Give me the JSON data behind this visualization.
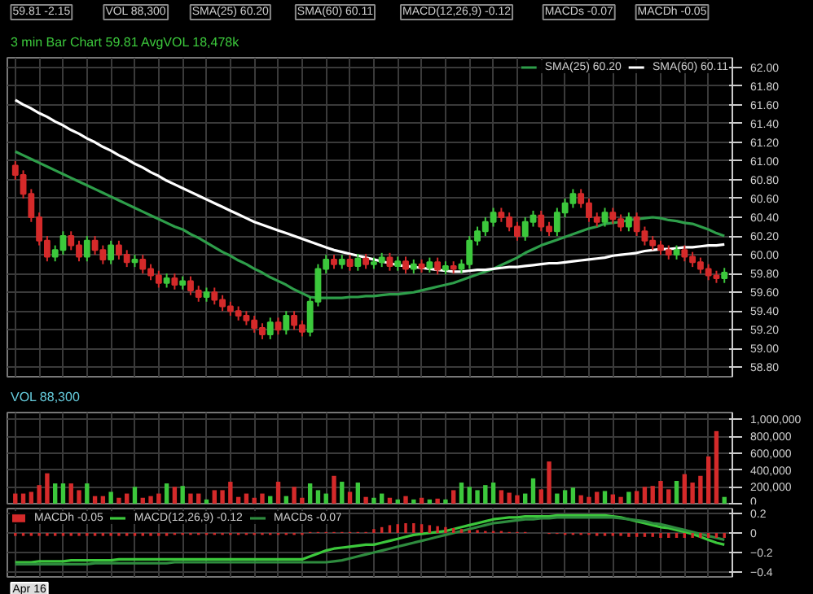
{
  "chart_data": [
    {
      "type": "candlestick",
      "title": "3 min Bar Chart 59.81 AvgVOL 18,478k",
      "annotations": [
        "59.81 -2.15",
        "VOL 88,300",
        "SMA(25) 60.20",
        "SMA(60) 60.11",
        "MACD(12,26,9) -0.12",
        "MACDs -0.07",
        "MACDh -0.05"
      ],
      "categories": [
        null,
        null,
        null,
        null,
        null,
        null,
        null,
        null,
        null,
        null,
        null,
        null,
        null,
        null,
        null,
        null,
        null,
        null,
        null,
        null,
        null,
        null,
        null,
        null,
        null,
        null,
        null,
        null,
        null,
        null,
        null,
        null,
        null,
        null,
        null,
        null,
        null,
        null,
        null,
        null,
        null,
        null,
        null,
        null,
        null,
        null,
        null,
        null,
        null,
        null,
        null,
        null,
        null,
        null,
        null,
        null,
        null,
        null,
        null,
        null,
        null,
        null,
        null,
        null,
        null,
        null,
        null,
        null,
        null,
        null,
        null,
        null,
        null,
        null,
        null,
        null,
        null,
        null,
        null,
        null,
        null,
        null,
        null,
        null,
        null,
        null,
        null,
        null,
        null,
        null
      ],
      "ohlc": [
        [
          60.95,
          61.0,
          60.8,
          60.85
        ],
        [
          60.85,
          60.9,
          60.6,
          60.65
        ],
        [
          60.65,
          60.7,
          60.35,
          60.4
        ],
        [
          60.4,
          60.45,
          60.1,
          60.15
        ],
        [
          60.15,
          60.2,
          59.93,
          59.98
        ],
        [
          59.98,
          60.1,
          59.93,
          60.05
        ],
        [
          60.05,
          60.25,
          60.0,
          60.2
        ],
        [
          60.2,
          60.25,
          60.05,
          60.1
        ],
        [
          60.1,
          60.15,
          59.93,
          59.98
        ],
        [
          59.98,
          60.2,
          59.93,
          60.15
        ],
        [
          60.15,
          60.2,
          60.0,
          60.05
        ],
        [
          60.05,
          60.1,
          59.9,
          59.95
        ],
        [
          59.95,
          60.15,
          59.9,
          60.1
        ],
        [
          60.1,
          60.15,
          59.95,
          60.0
        ],
        [
          60.0,
          60.05,
          59.87,
          59.92
        ],
        [
          59.92,
          60.0,
          59.87,
          59.95
        ],
        [
          59.95,
          60.0,
          59.8,
          59.85
        ],
        [
          59.85,
          59.9,
          59.73,
          59.78
        ],
        [
          59.78,
          59.83,
          59.65,
          59.7
        ],
        [
          59.7,
          59.8,
          59.65,
          59.75
        ],
        [
          59.75,
          59.8,
          59.63,
          59.68
        ],
        [
          59.68,
          59.77,
          59.63,
          59.72
        ],
        [
          59.72,
          59.77,
          59.57,
          59.62
        ],
        [
          59.62,
          59.67,
          59.5,
          59.55
        ],
        [
          59.55,
          59.65,
          59.5,
          59.6
        ],
        [
          59.6,
          59.65,
          59.47,
          59.52
        ],
        [
          59.52,
          59.57,
          59.4,
          59.45
        ],
        [
          59.45,
          59.5,
          59.35,
          59.4
        ],
        [
          59.4,
          59.45,
          59.3,
          59.35
        ],
        [
          59.35,
          59.4,
          59.25,
          59.3
        ],
        [
          59.3,
          59.35,
          59.17,
          59.22
        ],
        [
          59.22,
          59.27,
          59.1,
          59.15
        ],
        [
          59.15,
          59.33,
          59.1,
          59.28
        ],
        [
          59.28,
          59.33,
          59.15,
          59.2
        ],
        [
          59.2,
          59.4,
          59.15,
          59.35
        ],
        [
          59.35,
          59.4,
          59.2,
          59.25
        ],
        [
          59.25,
          59.3,
          59.13,
          59.18
        ],
        [
          59.18,
          59.55,
          59.13,
          59.5
        ],
        [
          59.5,
          59.9,
          59.45,
          59.85
        ],
        [
          59.85,
          60.0,
          59.8,
          59.95
        ],
        [
          59.95,
          60.0,
          59.85,
          59.9
        ],
        [
          59.9,
          60.0,
          59.85,
          59.95
        ],
        [
          59.95,
          60.0,
          59.83,
          59.88
        ],
        [
          59.88,
          60.01,
          59.83,
          59.96
        ],
        [
          59.96,
          60.01,
          59.85,
          59.9
        ],
        [
          59.9,
          59.97,
          59.85,
          59.92
        ],
        [
          59.92,
          60.02,
          59.87,
          59.97
        ],
        [
          59.97,
          60.02,
          59.83,
          59.88
        ],
        [
          59.88,
          59.98,
          59.83,
          59.93
        ],
        [
          59.93,
          59.98,
          59.8,
          59.85
        ],
        [
          59.85,
          59.95,
          59.8,
          59.9
        ],
        [
          59.9,
          59.95,
          59.81,
          59.86
        ],
        [
          59.86,
          59.97,
          59.81,
          59.92
        ],
        [
          59.92,
          59.97,
          59.79,
          59.84
        ],
        [
          59.84,
          59.93,
          59.79,
          59.88
        ],
        [
          59.88,
          59.93,
          59.8,
          59.85
        ],
        [
          59.85,
          59.95,
          59.8,
          59.9
        ],
        [
          59.9,
          60.2,
          59.85,
          60.15
        ],
        [
          60.15,
          60.3,
          60.1,
          60.25
        ],
        [
          60.25,
          60.4,
          60.2,
          60.35
        ],
        [
          60.35,
          60.5,
          60.3,
          60.45
        ],
        [
          60.45,
          60.5,
          60.35,
          60.4
        ],
        [
          60.4,
          60.45,
          60.25,
          60.3
        ],
        [
          60.3,
          60.35,
          60.15,
          60.2
        ],
        [
          60.2,
          60.4,
          60.15,
          60.35
        ],
        [
          60.35,
          60.47,
          60.3,
          60.42
        ],
        [
          60.42,
          60.47,
          60.25,
          60.3
        ],
        [
          60.3,
          60.35,
          60.2,
          60.25
        ],
        [
          60.25,
          60.5,
          60.2,
          60.45
        ],
        [
          60.45,
          60.6,
          60.4,
          60.55
        ],
        [
          60.55,
          60.7,
          60.5,
          60.65
        ],
        [
          60.65,
          60.7,
          60.5,
          60.55
        ],
        [
          60.55,
          60.6,
          60.35,
          60.4
        ],
        [
          60.4,
          60.45,
          60.3,
          60.35
        ],
        [
          60.35,
          60.5,
          60.3,
          60.45
        ],
        [
          60.45,
          60.5,
          60.33,
          60.38
        ],
        [
          60.38,
          60.43,
          60.25,
          60.3
        ],
        [
          60.3,
          60.45,
          60.25,
          60.4
        ],
        [
          60.4,
          60.45,
          60.2,
          60.25
        ],
        [
          60.25,
          60.3,
          60.1,
          60.15
        ],
        [
          60.15,
          60.2,
          60.05,
          60.1
        ],
        [
          60.1,
          60.15,
          60.0,
          60.05
        ],
        [
          60.05,
          60.1,
          59.95,
          60.0
        ],
        [
          60.0,
          60.1,
          59.95,
          60.05
        ],
        [
          60.05,
          60.1,
          59.93,
          59.98
        ],
        [
          59.98,
          60.03,
          59.87,
          59.92
        ],
        [
          59.92,
          59.97,
          59.8,
          59.85
        ],
        [
          59.85,
          59.9,
          59.73,
          59.78
        ],
        [
          59.78,
          59.83,
          59.7,
          59.75
        ],
        [
          59.75,
          59.86,
          59.7,
          59.81
        ]
      ],
      "colors": [
        "#d42a2a",
        "#d42a2a",
        "#d42a2a",
        "#d42a2a",
        "#d42a2a",
        "#3cc83c",
        "#3cc83c",
        "#d42a2a",
        "#d42a2a",
        "#3cc83c",
        "#d42a2a",
        "#d42a2a",
        "#3cc83c",
        "#d42a2a",
        "#d42a2a",
        "#3cc83c",
        "#d42a2a",
        "#d42a2a",
        "#d42a2a",
        "#3cc83c",
        "#d42a2a",
        "#3cc83c",
        "#d42a2a",
        "#d42a2a",
        "#3cc83c",
        "#d42a2a",
        "#d42a2a",
        "#d42a2a",
        "#d42a2a",
        "#d42a2a",
        "#d42a2a",
        "#d42a2a",
        "#3cc83c",
        "#d42a2a",
        "#3cc83c",
        "#d42a2a",
        "#d42a2a",
        "#3cc83c",
        "#3cc83c",
        "#3cc83c",
        "#d42a2a",
        "#3cc83c",
        "#d42a2a",
        "#3cc83c",
        "#d42a2a",
        "#3cc83c",
        "#3cc83c",
        "#d42a2a",
        "#3cc83c",
        "#d42a2a",
        "#3cc83c",
        "#d42a2a",
        "#3cc83c",
        "#d42a2a",
        "#3cc83c",
        "#d42a2a",
        "#3cc83c",
        "#3cc83c",
        "#3cc83c",
        "#3cc83c",
        "#3cc83c",
        "#d42a2a",
        "#d42a2a",
        "#d42a2a",
        "#3cc83c",
        "#3cc83c",
        "#d42a2a",
        "#d42a2a",
        "#3cc83c",
        "#3cc83c",
        "#3cc83c",
        "#d42a2a",
        "#d42a2a",
        "#d42a2a",
        "#3cc83c",
        "#d42a2a",
        "#d42a2a",
        "#3cc83c",
        "#d42a2a",
        "#d42a2a",
        "#d42a2a",
        "#d42a2a",
        "#d42a2a",
        "#3cc83c",
        "#d42a2a",
        "#d42a2a",
        "#d42a2a",
        "#d42a2a",
        "#d42a2a",
        "#3cc83c"
      ],
      "series": [
        {
          "name": "SMA(25) 60.20",
          "type": "line",
          "color": "#2e9e4a",
          "values": [
            61.1,
            61.06,
            61.02,
            60.98,
            60.94,
            60.9,
            60.86,
            60.82,
            60.78,
            60.74,
            60.7,
            60.66,
            60.62,
            60.58,
            60.54,
            60.5,
            60.46,
            60.42,
            60.38,
            60.34,
            60.3,
            60.27,
            60.22,
            60.18,
            60.13,
            60.08,
            60.03,
            59.99,
            59.94,
            59.9,
            59.85,
            59.81,
            59.76,
            59.72,
            59.68,
            59.63,
            59.59,
            59.55,
            59.54,
            59.54,
            59.54,
            59.54,
            59.55,
            59.55,
            59.56,
            59.56,
            59.57,
            59.58,
            59.58,
            59.59,
            59.6,
            59.62,
            59.64,
            59.66,
            59.68,
            59.7,
            59.73,
            59.76,
            59.79,
            59.82,
            59.85,
            59.89,
            59.93,
            59.97,
            60.02,
            60.06,
            60.1,
            60.13,
            60.16,
            60.19,
            60.22,
            60.25,
            60.28,
            60.3,
            60.33,
            60.34,
            60.35,
            60.37,
            60.38,
            60.39,
            60.4,
            60.39,
            60.37,
            60.36,
            60.34,
            60.33,
            60.3,
            60.27,
            60.23,
            60.2
          ]
        },
        {
          "name": "SMA(60) 60.11",
          "type": "line",
          "color": "#ffffff",
          "values": [
            61.65,
            61.6,
            61.56,
            61.51,
            61.47,
            61.42,
            61.38,
            61.33,
            61.29,
            61.24,
            61.2,
            61.15,
            61.11,
            61.06,
            61.02,
            60.97,
            60.93,
            60.88,
            60.84,
            60.79,
            60.75,
            60.71,
            60.67,
            60.63,
            60.59,
            60.55,
            60.51,
            60.47,
            60.43,
            60.39,
            60.35,
            60.32,
            60.29,
            60.26,
            60.23,
            60.2,
            60.17,
            60.14,
            60.11,
            60.08,
            60.05,
            60.03,
            60.01,
            59.99,
            59.97,
            59.95,
            59.93,
            59.91,
            59.89,
            59.88,
            59.87,
            59.86,
            59.85,
            59.84,
            59.83,
            59.82,
            59.82,
            59.83,
            59.84,
            59.84,
            59.85,
            59.86,
            59.87,
            59.87,
            59.88,
            59.89,
            59.9,
            59.91,
            59.91,
            59.92,
            59.93,
            59.94,
            59.95,
            59.96,
            59.97,
            59.99,
            60.0,
            60.01,
            60.02,
            60.04,
            60.05,
            60.06,
            60.06,
            60.07,
            60.08,
            60.08,
            60.09,
            60.1,
            60.1,
            60.11
          ]
        }
      ],
      "ylim": [
        58.7,
        62.1
      ],
      "yticks": [
        {
          "value": 58.8,
          "label": "58.80"
        },
        {
          "value": 59.0,
          "label": "59.00"
        },
        {
          "value": 59.2,
          "label": "59.20"
        },
        {
          "value": 59.4,
          "label": "59.40"
        },
        {
          "value": 59.6,
          "label": "59.60"
        },
        {
          "value": 59.8,
          "label": "59.80"
        },
        {
          "value": 60.0,
          "label": "60.00"
        },
        {
          "value": 60.2,
          "label": "60.20"
        },
        {
          "value": 60.4,
          "label": "60.40"
        },
        {
          "value": 60.6,
          "label": "60.60"
        },
        {
          "value": 60.8,
          "label": "60.80"
        },
        {
          "value": 61.0,
          "label": "61.00"
        },
        {
          "value": 61.2,
          "label": "61.20"
        },
        {
          "value": 61.4,
          "label": "61.40"
        },
        {
          "value": 61.6,
          "label": "61.60"
        },
        {
          "value": 61.8,
          "label": "61.80"
        },
        {
          "value": 62.0,
          "label": "62.00"
        }
      ],
      "grid": true,
      "legend": "top right"
    },
    {
      "type": "bar",
      "title": "VOL 88,300",
      "categories": [
        null,
        null,
        null,
        null,
        null,
        null,
        null,
        null,
        null,
        null,
        null,
        null,
        null,
        null,
        null,
        null,
        null,
        null,
        null,
        null,
        null,
        null,
        null,
        null,
        null,
        null,
        null,
        null,
        null,
        null,
        null,
        null,
        null,
        null,
        null,
        null,
        null,
        null,
        null,
        null,
        null,
        null,
        null,
        null,
        null,
        null,
        null,
        null,
        null,
        null,
        null,
        null,
        null,
        null,
        null,
        null,
        null,
        null,
        null,
        null,
        null,
        null,
        null,
        null,
        null,
        null,
        null,
        null,
        null,
        null,
        null,
        null,
        null,
        null,
        null,
        null,
        null,
        null,
        null,
        null,
        null,
        null,
        null,
        null,
        null,
        null,
        null,
        null,
        null,
        null
      ],
      "values": [
        120000,
        120000,
        140000,
        220000,
        360000,
        240000,
        240000,
        240000,
        160000,
        240000,
        90000,
        90000,
        140000,
        70000,
        120000,
        200000,
        70000,
        90000,
        120000,
        240000,
        200000,
        210000,
        120000,
        120000,
        50000,
        160000,
        160000,
        260000,
        80000,
        120000,
        70000,
        120000,
        90000,
        260000,
        90000,
        200000,
        70000,
        240000,
        160000,
        120000,
        330000,
        260000,
        140000,
        250000,
        80000,
        70000,
        120000,
        70000,
        50000,
        90000,
        50000,
        70000,
        50000,
        60000,
        50000,
        160000,
        250000,
        200000,
        160000,
        220000,
        250000,
        160000,
        130000,
        100000,
        120000,
        300000,
        170000,
        500000,
        120000,
        160000,
        190000,
        100000,
        80000,
        140000,
        150000,
        110000,
        80000,
        140000,
        150000,
        200000,
        210000,
        270000,
        170000,
        270000,
        350000,
        250000,
        330000,
        560000,
        860000,
        80000
      ],
      "colors": [
        "#d42a2a",
        "#d42a2a",
        "#d42a2a",
        "#d42a2a",
        "#d42a2a",
        "#3cc83c",
        "#3cc83c",
        "#d42a2a",
        "#d42a2a",
        "#3cc83c",
        "#d42a2a",
        "#d42a2a",
        "#3cc83c",
        "#d42a2a",
        "#d42a2a",
        "#3cc83c",
        "#d42a2a",
        "#d42a2a",
        "#d42a2a",
        "#3cc83c",
        "#d42a2a",
        "#3cc83c",
        "#d42a2a",
        "#d42a2a",
        "#3cc83c",
        "#d42a2a",
        "#d42a2a",
        "#d42a2a",
        "#d42a2a",
        "#d42a2a",
        "#d42a2a",
        "#d42a2a",
        "#3cc83c",
        "#d42a2a",
        "#3cc83c",
        "#d42a2a",
        "#d42a2a",
        "#3cc83c",
        "#3cc83c",
        "#3cc83c",
        "#d42a2a",
        "#3cc83c",
        "#d42a2a",
        "#3cc83c",
        "#d42a2a",
        "#3cc83c",
        "#3cc83c",
        "#d42a2a",
        "#3cc83c",
        "#d42a2a",
        "#3cc83c",
        "#d42a2a",
        "#3cc83c",
        "#d42a2a",
        "#3cc83c",
        "#d42a2a",
        "#3cc83c",
        "#3cc83c",
        "#3cc83c",
        "#3cc83c",
        "#3cc83c",
        "#d42a2a",
        "#d42a2a",
        "#d42a2a",
        "#3cc83c",
        "#3cc83c",
        "#d42a2a",
        "#d42a2a",
        "#3cc83c",
        "#3cc83c",
        "#3cc83c",
        "#d42a2a",
        "#d42a2a",
        "#d42a2a",
        "#3cc83c",
        "#d42a2a",
        "#d42a2a",
        "#3cc83c",
        "#d42a2a",
        "#d42a2a",
        "#d42a2a",
        "#d42a2a",
        "#d42a2a",
        "#3cc83c",
        "#d42a2a",
        "#d42a2a",
        "#d42a2a",
        "#d42a2a",
        "#d42a2a",
        "#3cc83c"
      ],
      "ylim": [
        0,
        1080000
      ],
      "yticks": [
        {
          "value": 0,
          "label": "0"
        },
        {
          "value": 200000,
          "label": "200,000"
        },
        {
          "value": 400000,
          "label": "400,000"
        },
        {
          "value": 600000,
          "label": "600,000"
        },
        {
          "value": 800000,
          "label": "800,000"
        },
        {
          "value": 1000000,
          "label": "1,000,000"
        }
      ],
      "grid": true
    },
    {
      "type": "line",
      "annotations": [
        "Apr 16"
      ],
      "categories": [
        null,
        null,
        null,
        null,
        null,
        null,
        null,
        null,
        null,
        null,
        null,
        null,
        null,
        null,
        null,
        null,
        null,
        null,
        null,
        null,
        null,
        null,
        null,
        null,
        null,
        null,
        null,
        null,
        null,
        null,
        null,
        null,
        null,
        null,
        null,
        null,
        null,
        null,
        null,
        null,
        null,
        null,
        null,
        null,
        null,
        null,
        null,
        null,
        null,
        null,
        null,
        null,
        null,
        null,
        null,
        null,
        null,
        null,
        null,
        null,
        null,
        null,
        null,
        null,
        null,
        null,
        null,
        null,
        null,
        null,
        null,
        null,
        null,
        null,
        null,
        null,
        null,
        null,
        null,
        null,
        null,
        null,
        null,
        null,
        null,
        null,
        null,
        null,
        null,
        null
      ],
      "series": [
        {
          "name": "MACDh -0.05",
          "type": "bar",
          "color": "#d42a2a",
          "values": [
            -0.03,
            -0.03,
            -0.03,
            -0.03,
            -0.03,
            -0.03,
            -0.03,
            -0.03,
            -0.03,
            -0.03,
            -0.03,
            -0.03,
            -0.03,
            -0.03,
            -0.03,
            -0.03,
            -0.03,
            -0.03,
            -0.03,
            -0.03,
            -0.02,
            -0.02,
            -0.02,
            -0.02,
            -0.02,
            -0.02,
            -0.02,
            -0.02,
            -0.02,
            -0.02,
            -0.02,
            -0.02,
            -0.02,
            -0.02,
            -0.02,
            -0.02,
            -0.02,
            0.01,
            0.01,
            0.01,
            0.01,
            0.01,
            0.01,
            0.01,
            0.01,
            0.04,
            0.06,
            0.08,
            0.09,
            0.1,
            0.1,
            0.09,
            0.08,
            0.07,
            0.06,
            0.05,
            0.04,
            0.03,
            0.03,
            0.02,
            0.02,
            0.02,
            0.01,
            0.01,
            0.01,
            0.0,
            0.0,
            -0.01,
            -0.01,
            -0.02,
            -0.02,
            -0.02,
            -0.02,
            -0.03,
            -0.03,
            -0.03,
            -0.03,
            -0.04,
            -0.04,
            -0.04,
            -0.04,
            -0.05,
            -0.05,
            -0.05,
            -0.05,
            -0.05,
            -0.05,
            -0.05,
            -0.05,
            -0.05
          ]
        },
        {
          "name": "MACD(12,26,9) -0.12",
          "type": "line",
          "color": "#3cc83c",
          "values": [
            -0.3,
            -0.3,
            -0.3,
            -0.29,
            -0.29,
            -0.29,
            -0.29,
            -0.28,
            -0.28,
            -0.28,
            -0.28,
            -0.28,
            -0.28,
            -0.27,
            -0.27,
            -0.27,
            -0.27,
            -0.27,
            -0.27,
            -0.27,
            -0.27,
            -0.27,
            -0.27,
            -0.27,
            -0.27,
            -0.27,
            -0.27,
            -0.27,
            -0.27,
            -0.27,
            -0.27,
            -0.27,
            -0.27,
            -0.27,
            -0.27,
            -0.27,
            -0.27,
            -0.24,
            -0.21,
            -0.18,
            -0.16,
            -0.15,
            -0.14,
            -0.13,
            -0.12,
            -0.12,
            -0.1,
            -0.08,
            -0.06,
            -0.04,
            -0.02,
            -0.01,
            0.0,
            0.01,
            0.02,
            0.04,
            0.06,
            0.08,
            0.1,
            0.12,
            0.14,
            0.15,
            0.16,
            0.16,
            0.17,
            0.17,
            0.17,
            0.17,
            0.18,
            0.18,
            0.18,
            0.18,
            0.18,
            0.18,
            0.18,
            0.17,
            0.16,
            0.14,
            0.12,
            0.1,
            0.08,
            0.06,
            0.05,
            0.03,
            0.01,
            -0.01,
            -0.04,
            -0.07,
            -0.1,
            -0.12
          ]
        },
        {
          "name": "MACDs -0.07",
          "type": "line",
          "color": "#2e8b3e",
          "values": [
            -0.32,
            -0.32,
            -0.32,
            -0.32,
            -0.32,
            -0.32,
            -0.32,
            -0.32,
            -0.32,
            -0.32,
            -0.31,
            -0.31,
            -0.31,
            -0.31,
            -0.31,
            -0.31,
            -0.31,
            -0.31,
            -0.31,
            -0.31,
            -0.3,
            -0.3,
            -0.3,
            -0.3,
            -0.3,
            -0.3,
            -0.3,
            -0.3,
            -0.3,
            -0.3,
            -0.3,
            -0.3,
            -0.3,
            -0.3,
            -0.3,
            -0.3,
            -0.3,
            -0.3,
            -0.3,
            -0.3,
            -0.29,
            -0.28,
            -0.26,
            -0.24,
            -0.22,
            -0.2,
            -0.18,
            -0.16,
            -0.14,
            -0.12,
            -0.1,
            -0.08,
            -0.06,
            -0.04,
            -0.02,
            0.0,
            0.02,
            0.04,
            0.06,
            0.08,
            0.1,
            0.11,
            0.12,
            0.13,
            0.14,
            0.14,
            0.15,
            0.15,
            0.16,
            0.16,
            0.16,
            0.16,
            0.16,
            0.16,
            0.16,
            0.16,
            0.15,
            0.14,
            0.13,
            0.12,
            0.1,
            0.09,
            0.07,
            0.05,
            0.03,
            0.01,
            -0.01,
            -0.03,
            -0.05,
            -0.07
          ]
        }
      ],
      "ylim": [
        -0.45,
        0.25
      ],
      "yticks": [
        0.2,
        0,
        -0.2,
        -0.4
      ],
      "grid": true,
      "legend": "top left"
    }
  ]
}
